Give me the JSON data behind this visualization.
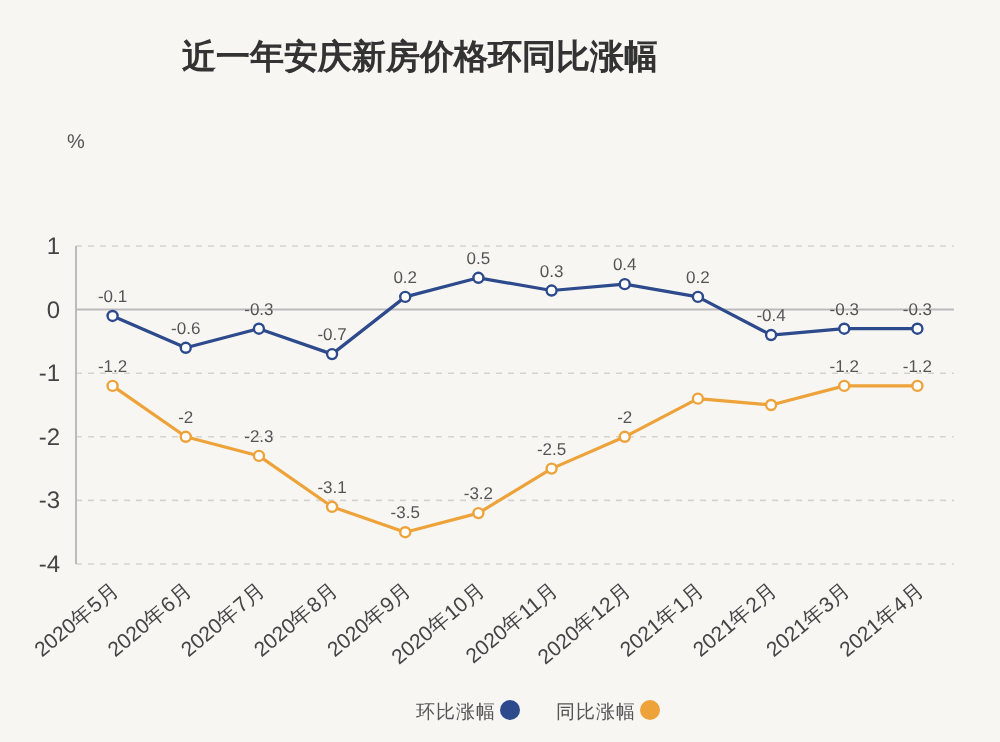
{
  "chart_data": {
    "type": "line",
    "title": "近一年安庆新房价格环同比涨幅",
    "ylabel": "%",
    "categories": [
      "2020年5月",
      "2020年6月",
      "2020年7月",
      "2020年8月",
      "2020年9月",
      "2020年10月",
      "2020年11月",
      "2020年12月",
      "2021年1月",
      "2021年2月",
      "2021年3月",
      "2021年4月"
    ],
    "series": [
      {
        "name": "环比涨幅",
        "color": "#2c4a8c",
        "values": [
          -0.1,
          -0.6,
          -0.3,
          -0.7,
          0.2,
          0.5,
          0.3,
          0.4,
          0.2,
          -0.4,
          -0.3,
          -0.3
        ],
        "value_labels": [
          "-0.1",
          "-0.6",
          "-0.3",
          "-0.7",
          "0.2",
          "0.5",
          "0.3",
          "0.4",
          "0.2",
          "-0.4",
          "-0.3",
          "-0.3"
        ]
      },
      {
        "name": "同比涨幅",
        "color": "#eea33a",
        "values": [
          -1.2,
          -2,
          -2.3,
          -3.1,
          -3.5,
          -3.2,
          -2.5,
          -2,
          -1.4,
          -1.5,
          -1.2,
          -1.2
        ],
        "value_labels": [
          "-1.2",
          "-2",
          "-2.3",
          "-3.1",
          "-3.5",
          "-3.2",
          "-2.5",
          "-2",
          null,
          null,
          "-1.2",
          "-1.2"
        ]
      }
    ],
    "ylim": [
      -4,
      1
    ],
    "yticks": [
      -4,
      -3,
      -2,
      -1,
      0,
      1
    ],
    "grid": "y",
    "legend": "bottom",
    "marker": "circle"
  }
}
